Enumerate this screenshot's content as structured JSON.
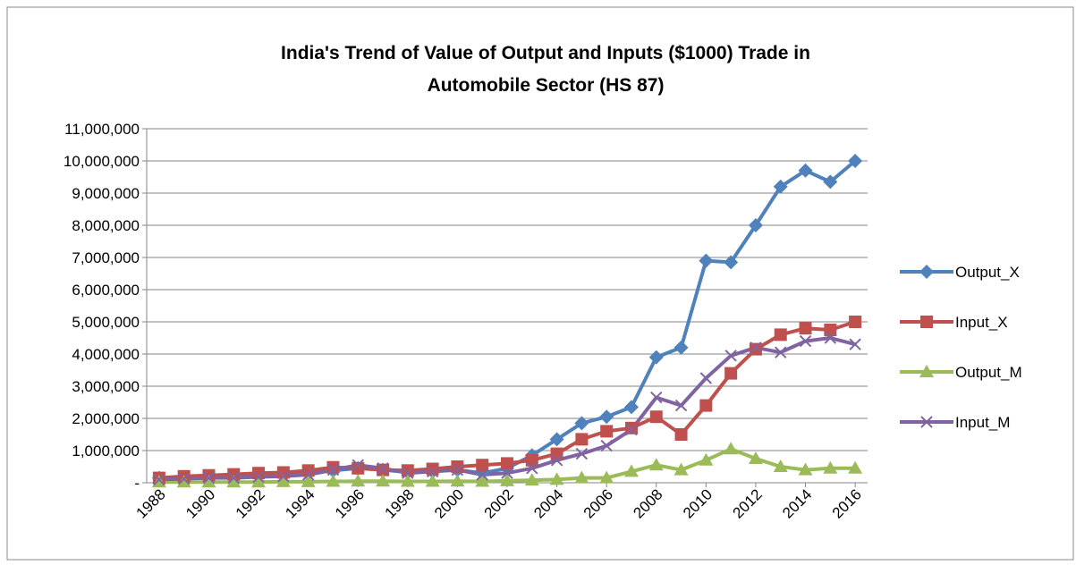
{
  "chart_data": {
    "type": "line",
    "title": "India's Trend of Value of Output and Inputs ($1000) Trade in Automobile Sector (HS 87)",
    "x": [
      1988,
      1989,
      1990,
      1991,
      1992,
      1993,
      1994,
      1995,
      1996,
      1997,
      1998,
      1999,
      2000,
      2001,
      2002,
      2003,
      2004,
      2005,
      2006,
      2007,
      2008,
      2009,
      2010,
      2011,
      2012,
      2013,
      2014,
      2015,
      2016
    ],
    "xlim": [
      1987.5,
      2016.5
    ],
    "xticks": [
      1988,
      1990,
      1992,
      1994,
      1996,
      1998,
      2000,
      2002,
      2004,
      2006,
      2008,
      2010,
      2012,
      2014,
      2016
    ],
    "ylim": [
      0,
      11000000
    ],
    "yticks": [
      {
        "value": 0,
        "label": "-"
      },
      {
        "value": 1000000,
        "label": "1,000,000"
      },
      {
        "value": 2000000,
        "label": "2,000,000"
      },
      {
        "value": 3000000,
        "label": "3,000,000"
      },
      {
        "value": 4000000,
        "label": "4,000,000"
      },
      {
        "value": 5000000,
        "label": "5,000,000"
      },
      {
        "value": 6000000,
        "label": "6,000,000"
      },
      {
        "value": 7000000,
        "label": "7,000,000"
      },
      {
        "value": 8000000,
        "label": "8,000,000"
      },
      {
        "value": 9000000,
        "label": "9,000,000"
      },
      {
        "value": 10000000,
        "label": "10,000,000"
      },
      {
        "value": 11000000,
        "label": "11,000,000"
      }
    ],
    "grid": true,
    "legend": "right",
    "series": [
      {
        "name": "Output_X",
        "color": "#4f81bd",
        "marker": "diamond",
        "values": [
          150000,
          180000,
          200000,
          200000,
          220000,
          250000,
          280000,
          380000,
          450000,
          400000,
          330000,
          350000,
          400000,
          300000,
          450000,
          850000,
          1350000,
          1850000,
          2050000,
          2350000,
          3900000,
          4200000,
          6900000,
          6850000,
          8000000,
          9200000,
          9700000,
          9350000,
          10000000
        ]
      },
      {
        "name": "Input_X",
        "color": "#c0504d",
        "marker": "square",
        "values": [
          150000,
          200000,
          230000,
          260000,
          300000,
          320000,
          380000,
          480000,
          450000,
          400000,
          380000,
          430000,
          500000,
          550000,
          600000,
          700000,
          900000,
          1350000,
          1600000,
          1700000,
          2050000,
          1500000,
          2400000,
          3400000,
          4150000,
          4600000,
          4800000,
          4750000,
          5000000
        ]
      },
      {
        "name": "Output_M",
        "color": "#9bbb59",
        "marker": "triangle",
        "values": [
          20000,
          20000,
          20000,
          20000,
          20000,
          30000,
          30000,
          40000,
          50000,
          50000,
          40000,
          40000,
          50000,
          40000,
          60000,
          80000,
          100000,
          150000,
          150000,
          350000,
          550000,
          400000,
          700000,
          1050000,
          750000,
          500000,
          400000,
          450000,
          450000
        ]
      },
      {
        "name": "Input_M",
        "color": "#8064a2",
        "marker": "x",
        "values": [
          100000,
          120000,
          150000,
          150000,
          180000,
          200000,
          250000,
          400000,
          550000,
          450000,
          300000,
          350000,
          400000,
          250000,
          300000,
          450000,
          700000,
          900000,
          1150000,
          1650000,
          2650000,
          2400000,
          3250000,
          3950000,
          4200000,
          4050000,
          4400000,
          4500000,
          4300000
        ]
      }
    ]
  }
}
